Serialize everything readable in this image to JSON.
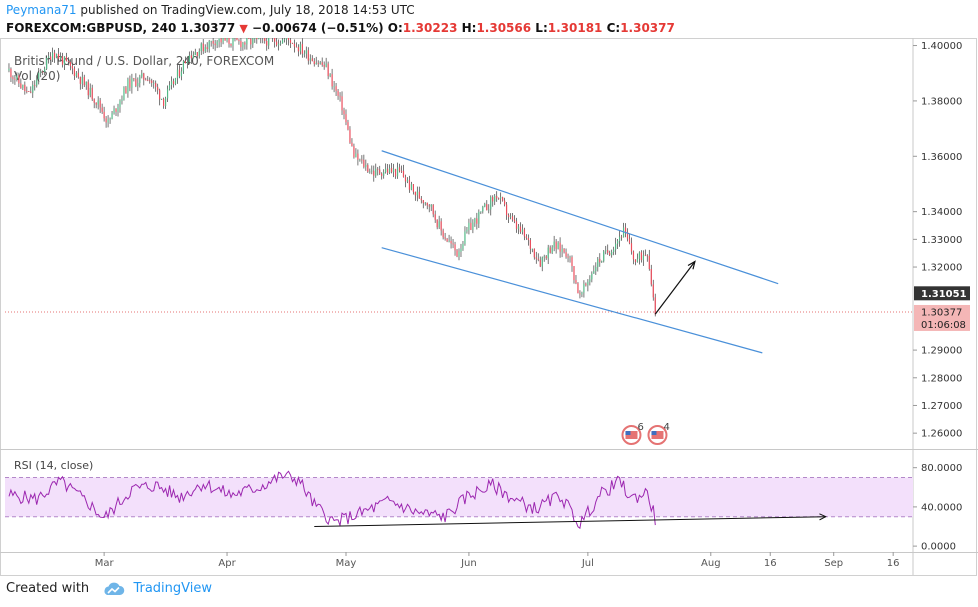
{
  "header": {
    "user": "Peymana71",
    "published": "published on TradingView.com, July 18, 2018 14:53 UTC",
    "symbol": "FOREXCOM:GBPUSD, 240",
    "last": "1.30377",
    "change": "−0.00674 (−0.51%)",
    "open_label": "O:",
    "open": "1.30223",
    "high_label": "H:",
    "high": "1.30566",
    "low_label": "L:",
    "low": "1.30181",
    "close_label": "C:",
    "close": "1.30377"
  },
  "footer": {
    "created_with": "Created with",
    "brand": "TradingView"
  },
  "colors": {
    "up": "#53b987",
    "down": "#eb4d5c",
    "candle": "#555555",
    "channel": "#4a90d9",
    "rsi": "#9c27b0",
    "rsi_band": "#f3e0fb",
    "price_line": "#e57373"
  },
  "chart_data": [
    {
      "type": "candlestick",
      "title": "British Pound / U.S. Dollar, 240, FOREXCOM",
      "overlay_label": "Vol (20)",
      "y_tick_labels": [
        "1.40000",
        "1.38000",
        "1.36000",
        "1.34000",
        "1.33000",
        "1.32000",
        "1.31051",
        "1.30377",
        "1.29000",
        "1.28000",
        "1.27000",
        "1.26000"
      ],
      "y_ticks": [
        1.4,
        1.38,
        1.36,
        1.34,
        1.33,
        1.32,
        1.29,
        1.28,
        1.27,
        1.26
      ],
      "ylim": [
        1.255,
        1.402
      ],
      "x_tick_labels": [
        "Mar",
        "Apr",
        "May",
        "Jun",
        "Jul",
        "Aug",
        "16",
        "Sep",
        "16"
      ],
      "x_tick_dates": [
        "2018-03-01",
        "2018-04-01",
        "2018-05-01",
        "2018-06-01",
        "2018-07-01",
        "2018-08-01",
        "2018-08-16",
        "2018-09-01",
        "2018-09-16"
      ],
      "xlim": [
        "2018-02-04",
        "2018-09-21"
      ],
      "last_price": 1.30377,
      "last_price_label": "1.30377",
      "countdown": "01:06:08",
      "marked_price": 1.31051,
      "marked_price_label": "1.31051",
      "close_path": [
        {
          "date": "2018-02-05",
          "price": 1.391
        },
        {
          "date": "2018-02-10",
          "price": 1.382
        },
        {
          "date": "2018-02-16",
          "price": 1.398
        },
        {
          "date": "2018-02-22",
          "price": 1.39
        },
        {
          "date": "2018-02-28",
          "price": 1.378
        },
        {
          "date": "2018-03-02",
          "price": 1.372
        },
        {
          "date": "2018-03-07",
          "price": 1.386
        },
        {
          "date": "2018-03-12",
          "price": 1.389
        },
        {
          "date": "2018-03-16",
          "price": 1.38
        },
        {
          "date": "2018-03-22",
          "price": 1.396
        },
        {
          "date": "2018-03-29",
          "price": 1.402
        },
        {
          "date": "2018-04-05",
          "price": 1.401
        },
        {
          "date": "2018-04-12",
          "price": 1.402
        },
        {
          "date": "2018-04-17",
          "price": 1.402
        },
        {
          "date": "2018-04-21",
          "price": 1.397
        },
        {
          "date": "2018-04-26",
          "price": 1.392
        },
        {
          "date": "2018-04-30",
          "price": 1.378
        },
        {
          "date": "2018-05-03",
          "price": 1.36
        },
        {
          "date": "2018-05-08",
          "price": 1.354
        },
        {
          "date": "2018-05-11",
          "price": 1.355
        },
        {
          "date": "2018-05-15",
          "price": 1.354
        },
        {
          "date": "2018-05-18",
          "price": 1.347
        },
        {
          "date": "2018-05-22",
          "price": 1.343
        },
        {
          "date": "2018-05-25",
          "price": 1.333
        },
        {
          "date": "2018-05-29",
          "price": 1.325
        },
        {
          "date": "2018-06-01",
          "price": 1.334
        },
        {
          "date": "2018-06-05",
          "price": 1.341
        },
        {
          "date": "2018-06-08",
          "price": 1.346
        },
        {
          "date": "2018-06-12",
          "price": 1.336
        },
        {
          "date": "2018-06-15",
          "price": 1.331
        },
        {
          "date": "2018-06-19",
          "price": 1.322
        },
        {
          "date": "2018-06-22",
          "price": 1.328
        },
        {
          "date": "2018-06-26",
          "price": 1.325
        },
        {
          "date": "2018-06-29",
          "price": 1.309
        },
        {
          "date": "2018-07-03",
          "price": 1.321
        },
        {
          "date": "2018-07-07",
          "price": 1.327
        },
        {
          "date": "2018-07-10",
          "price": 1.333
        },
        {
          "date": "2018-07-13",
          "price": 1.322
        },
        {
          "date": "2018-07-16",
          "price": 1.326
        },
        {
          "date": "2018-07-18",
          "price": 1.304
        }
      ],
      "channel_upper": [
        {
          "date": "2018-05-10",
          "price": 1.362
        },
        {
          "date": "2018-08-18",
          "price": 1.314
        }
      ],
      "channel_lower": [
        {
          "date": "2018-05-10",
          "price": 1.327
        },
        {
          "date": "2018-08-14",
          "price": 1.289
        }
      ],
      "projection_arrow": [
        {
          "date": "2018-07-18",
          "price": 1.303
        },
        {
          "date": "2018-07-28",
          "price": 1.322
        }
      ],
      "event_badges": [
        "6",
        "4"
      ]
    },
    {
      "type": "line",
      "title": "RSI (14, close)",
      "y_tick_labels": [
        "80.0000",
        "40.0000",
        "0.0000"
      ],
      "y_ticks": [
        80,
        40,
        0
      ],
      "ylim": [
        -6,
        96
      ],
      "band": [
        30,
        70
      ],
      "series": [
        {
          "points": [
            {
              "date": "2018-02-05",
              "value": 52
            },
            {
              "date": "2018-02-12",
              "value": 48
            },
            {
              "date": "2018-02-18",
              "value": 66
            },
            {
              "date": "2018-02-25",
              "value": 44
            },
            {
              "date": "2018-03-01",
              "value": 28
            },
            {
              "date": "2018-03-08",
              "value": 58
            },
            {
              "date": "2018-03-14",
              "value": 62
            },
            {
              "date": "2018-03-20",
              "value": 50
            },
            {
              "date": "2018-03-26",
              "value": 64
            },
            {
              "date": "2018-04-02",
              "value": 52
            },
            {
              "date": "2018-04-09",
              "value": 60
            },
            {
              "date": "2018-04-15",
              "value": 72
            },
            {
              "date": "2018-04-19",
              "value": 68
            },
            {
              "date": "2018-04-23",
              "value": 42
            },
            {
              "date": "2018-04-28",
              "value": 24
            },
            {
              "date": "2018-05-05",
              "value": 34
            },
            {
              "date": "2018-05-12",
              "value": 46
            },
            {
              "date": "2018-05-19",
              "value": 34
            },
            {
              "date": "2018-05-26",
              "value": 30
            },
            {
              "date": "2018-06-01",
              "value": 52
            },
            {
              "date": "2018-06-07",
              "value": 62
            },
            {
              "date": "2018-06-13",
              "value": 46
            },
            {
              "date": "2018-06-18",
              "value": 38
            },
            {
              "date": "2018-06-24",
              "value": 52
            },
            {
              "date": "2018-06-29",
              "value": 22
            },
            {
              "date": "2018-07-04",
              "value": 52
            },
            {
              "date": "2018-07-09",
              "value": 66
            },
            {
              "date": "2018-07-12",
              "value": 48
            },
            {
              "date": "2018-07-16",
              "value": 55
            },
            {
              "date": "2018-07-18",
              "value": 28
            }
          ]
        }
      ],
      "trendline": [
        {
          "date": "2018-04-23",
          "value": 20
        },
        {
          "date": "2018-08-30",
          "value": 30
        }
      ]
    }
  ]
}
